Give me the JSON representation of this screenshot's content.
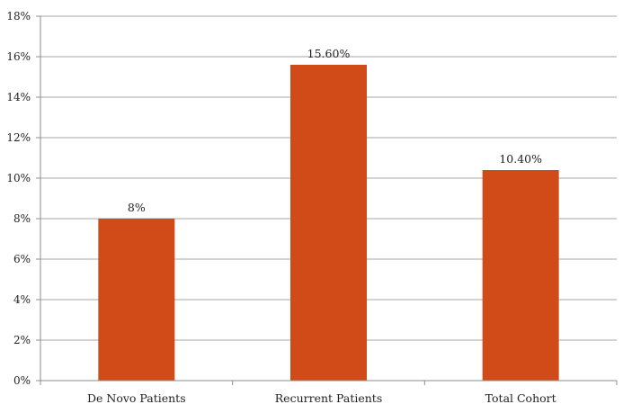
{
  "chart_data": {
    "type": "bar",
    "categories": [
      "De Novo Patients",
      "Recurrent Patients",
      "Total Cohort"
    ],
    "values": [
      8,
      15.6,
      10.4
    ],
    "data_labels": [
      "8%",
      "15.60%",
      "10.40%"
    ],
    "title": "",
    "xlabel": "",
    "ylabel": "",
    "ylim": [
      0,
      18
    ],
    "y_ticks": [
      0,
      2,
      4,
      6,
      8,
      10,
      12,
      14,
      16,
      18
    ],
    "y_tick_labels": [
      "0%",
      "2%",
      "4%",
      "6%",
      "8%",
      "10%",
      "12%",
      "14%",
      "16%",
      "18%"
    ],
    "grid": true,
    "legend": "none",
    "colors": {
      "bar": "#d14b19",
      "grid": "#a6a6a6",
      "axis": "#8c8c8c",
      "text": "#222222"
    }
  }
}
